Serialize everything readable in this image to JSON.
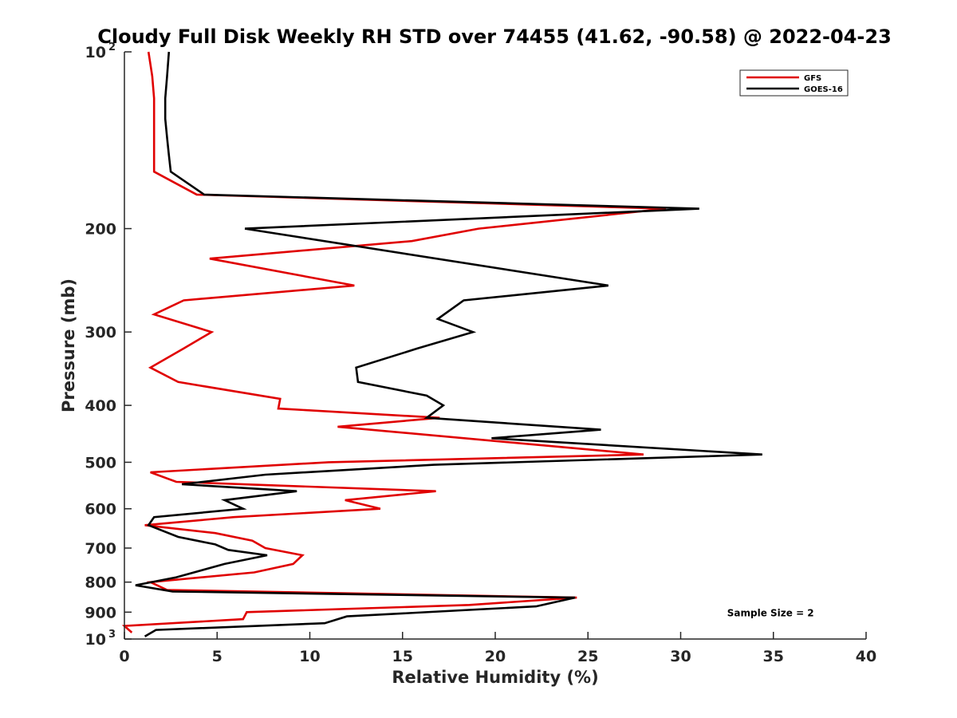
{
  "chart_data": {
    "type": "line",
    "title": "Cloudy Full Disk Weekly RH STD over 74455 (41.62, -90.58) @ 2022-04-23",
    "xlabel": "Relative Humidity (%)",
    "ylabel": "Pressure (mb)",
    "xlim": [
      0,
      40
    ],
    "ylim": [
      100,
      1000
    ],
    "y_scale": "log",
    "y_reversed": true,
    "grid": false,
    "legend_position": "top-right",
    "x_ticks": [
      "0",
      "5",
      "10",
      "15",
      "20",
      "25",
      "30",
      "35",
      "40"
    ],
    "y_ticks": [
      {
        "value": 100,
        "label": "10",
        "sup": "2"
      },
      {
        "value": 200,
        "label": "200",
        "sup": ""
      },
      {
        "value": 300,
        "label": "300",
        "sup": ""
      },
      {
        "value": 400,
        "label": "400",
        "sup": ""
      },
      {
        "value": 500,
        "label": "500",
        "sup": ""
      },
      {
        "value": 600,
        "label": "600",
        "sup": ""
      },
      {
        "value": 700,
        "label": "700",
        "sup": ""
      },
      {
        "value": 800,
        "label": "800",
        "sup": ""
      },
      {
        "value": 900,
        "label": "900",
        "sup": ""
      },
      {
        "value": 1000,
        "label": "10",
        "sup": "3"
      }
    ],
    "series": [
      {
        "name": "GFS",
        "color": "#e00000",
        "x": [
          1.3,
          1.5,
          1.6,
          1.6,
          1.6,
          1.6,
          1.6,
          3.9,
          29.2,
          19.1,
          15.5,
          4.6,
          12.4,
          3.2,
          1.6,
          4.7,
          3.2,
          1.4,
          2.9,
          8.4,
          8.3,
          17.0,
          11.5,
          28.0,
          11.0,
          1.4,
          2.8,
          16.8,
          11.9,
          13.8,
          5.9,
          1.1,
          4.9,
          6.9,
          7.6,
          9.6,
          9.1,
          7.0,
          1.4,
          2.3,
          24.4,
          18.6,
          6.6,
          6.4,
          0.0,
          0.4
        ],
        "y": [
          100,
          110,
          120,
          130,
          140,
          150,
          160,
          175,
          185,
          200,
          210,
          225,
          250,
          265,
          280,
          300,
          320,
          345,
          365,
          390,
          405,
          420,
          435,
          485,
          500,
          520,
          540,
          560,
          580,
          600,
          620,
          640,
          660,
          680,
          700,
          720,
          745,
          770,
          800,
          825,
          850,
          875,
          900,
          925,
          950,
          975
        ]
      },
      {
        "name": "GOES-16",
        "color": "#000000",
        "x": [
          2.4,
          2.3,
          2.2,
          2.2,
          2.3,
          2.4,
          2.5,
          4.3,
          31.0,
          6.5,
          26.1,
          18.3,
          16.9,
          18.8,
          15.8,
          12.5,
          12.6,
          16.3,
          17.2,
          16.3,
          25.7,
          19.8,
          34.4,
          16.7,
          7.6,
          3.1,
          9.3,
          5.4,
          6.4,
          1.6,
          1.3,
          2.9,
          4.9,
          5.6,
          7.7,
          5.4,
          2.8,
          0.6,
          2.6,
          24.3,
          22.2,
          12.0,
          10.8,
          1.7,
          1.1
        ],
        "y": [
          100,
          110,
          120,
          130,
          140,
          150,
          160,
          175,
          185,
          200,
          250,
          265,
          285,
          300,
          320,
          345,
          365,
          385,
          400,
          420,
          440,
          455,
          485,
          505,
          525,
          545,
          560,
          580,
          600,
          620,
          640,
          670,
          690,
          705,
          720,
          745,
          785,
          810,
          830,
          850,
          880,
          915,
          940,
          965,
          990
        ]
      }
    ],
    "annotations": [
      {
        "text": "Sample Size = 2",
        "x": 35,
        "y": 900
      }
    ]
  }
}
